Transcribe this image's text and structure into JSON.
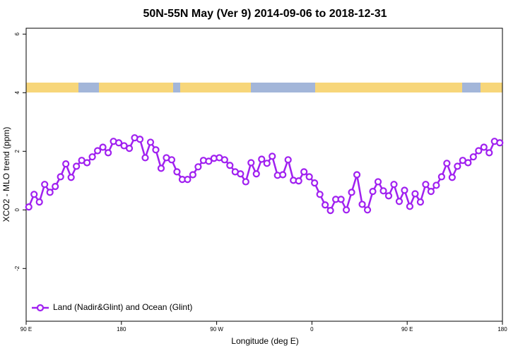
{
  "chart_data": {
    "type": "line",
    "title": "50N-55N May (Ver 9)   2014-09-06 to 2018-12-31",
    "x_label": "Longitude (deg E)",
    "y_label": "XCO2 - MLO trend (ppm)",
    "xlim": [
      90,
      540
    ],
    "ylim": [
      -3.8,
      6.2
    ],
    "xticks": [
      {
        "value": 90,
        "label": "90 E"
      },
      {
        "value": 180,
        "label": "180"
      },
      {
        "value": 270,
        "label": "90 W"
      },
      {
        "value": 360,
        "label": "0"
      },
      {
        "value": 450,
        "label": "90 E"
      },
      {
        "value": 540,
        "label": "180"
      }
    ],
    "yticks": [
      -2,
      0,
      2,
      4,
      6
    ],
    "legend": "bottom-left",
    "x": [
      92.5,
      97.5,
      102.5,
      107.5,
      112.5,
      117.5,
      122.5,
      127.5,
      132.5,
      137.5,
      142.5,
      147.5,
      152.5,
      157.5,
      162.5,
      167.5,
      172.5,
      177.5,
      182.5,
      187.5,
      192.5,
      197.5,
      202.5,
      207.5,
      212.5,
      217.5,
      222.5,
      227.5,
      232.5,
      237.5,
      242.5,
      247.5,
      252.5,
      257.5,
      262.5,
      267.5,
      272.5,
      277.5,
      282.5,
      287.5,
      292.5,
      297.5,
      302.5,
      307.5,
      312.5,
      317.5,
      322.5,
      327.5,
      332.5,
      337.5,
      342.5,
      347.5,
      352.5,
      357.5,
      362.5,
      367.5,
      372.5,
      377.5,
      382.5,
      387.5,
      392.5,
      397.5,
      402.5,
      407.5,
      412.5,
      417.5,
      422.5,
      427.5,
      432.5,
      437.5,
      442.5,
      447.5,
      452.5,
      457.5,
      462.5,
      467.5,
      472.5,
      477.5,
      482.5,
      487.5,
      492.5,
      497.5,
      502.5,
      507.5,
      512.5,
      517.5,
      522.5,
      527.5,
      532.5,
      537.5
    ],
    "series": [
      {
        "name": "Land (Nadir&Glint) and Ocean (Glint)",
        "color": "#a020f0",
        "values": [
          0.1,
          0.53,
          0.27,
          0.87,
          0.6,
          0.8,
          1.13,
          1.57,
          1.11,
          1.49,
          1.69,
          1.61,
          1.81,
          2.02,
          2.14,
          1.95,
          2.34,
          2.29,
          2.19,
          2.1,
          2.46,
          2.41,
          1.78,
          2.31,
          2.05,
          1.42,
          1.78,
          1.71,
          1.3,
          1.04,
          1.04,
          1.2,
          1.47,
          1.69,
          1.66,
          1.76,
          1.78,
          1.71,
          1.52,
          1.3,
          1.23,
          0.96,
          1.61,
          1.23,
          1.73,
          1.59,
          1.83,
          1.18,
          1.2,
          1.71,
          1.01,
          0.99,
          1.3,
          1.13,
          0.92,
          0.53,
          0.17,
          -0.02,
          0.36,
          0.36,
          0,
          0.6,
          1.2,
          0.19,
          0,
          0.63,
          0.96,
          0.65,
          0.48,
          0.87,
          0.29,
          0.67,
          0.12,
          0.55,
          0.27,
          0.87,
          0.63,
          0.84,
          1.13,
          1.59,
          1.11,
          1.49,
          1.69,
          1.61,
          1.81,
          2.02,
          2.14,
          1.95,
          2.34,
          2.29
        ]
      }
    ]
  }
}
